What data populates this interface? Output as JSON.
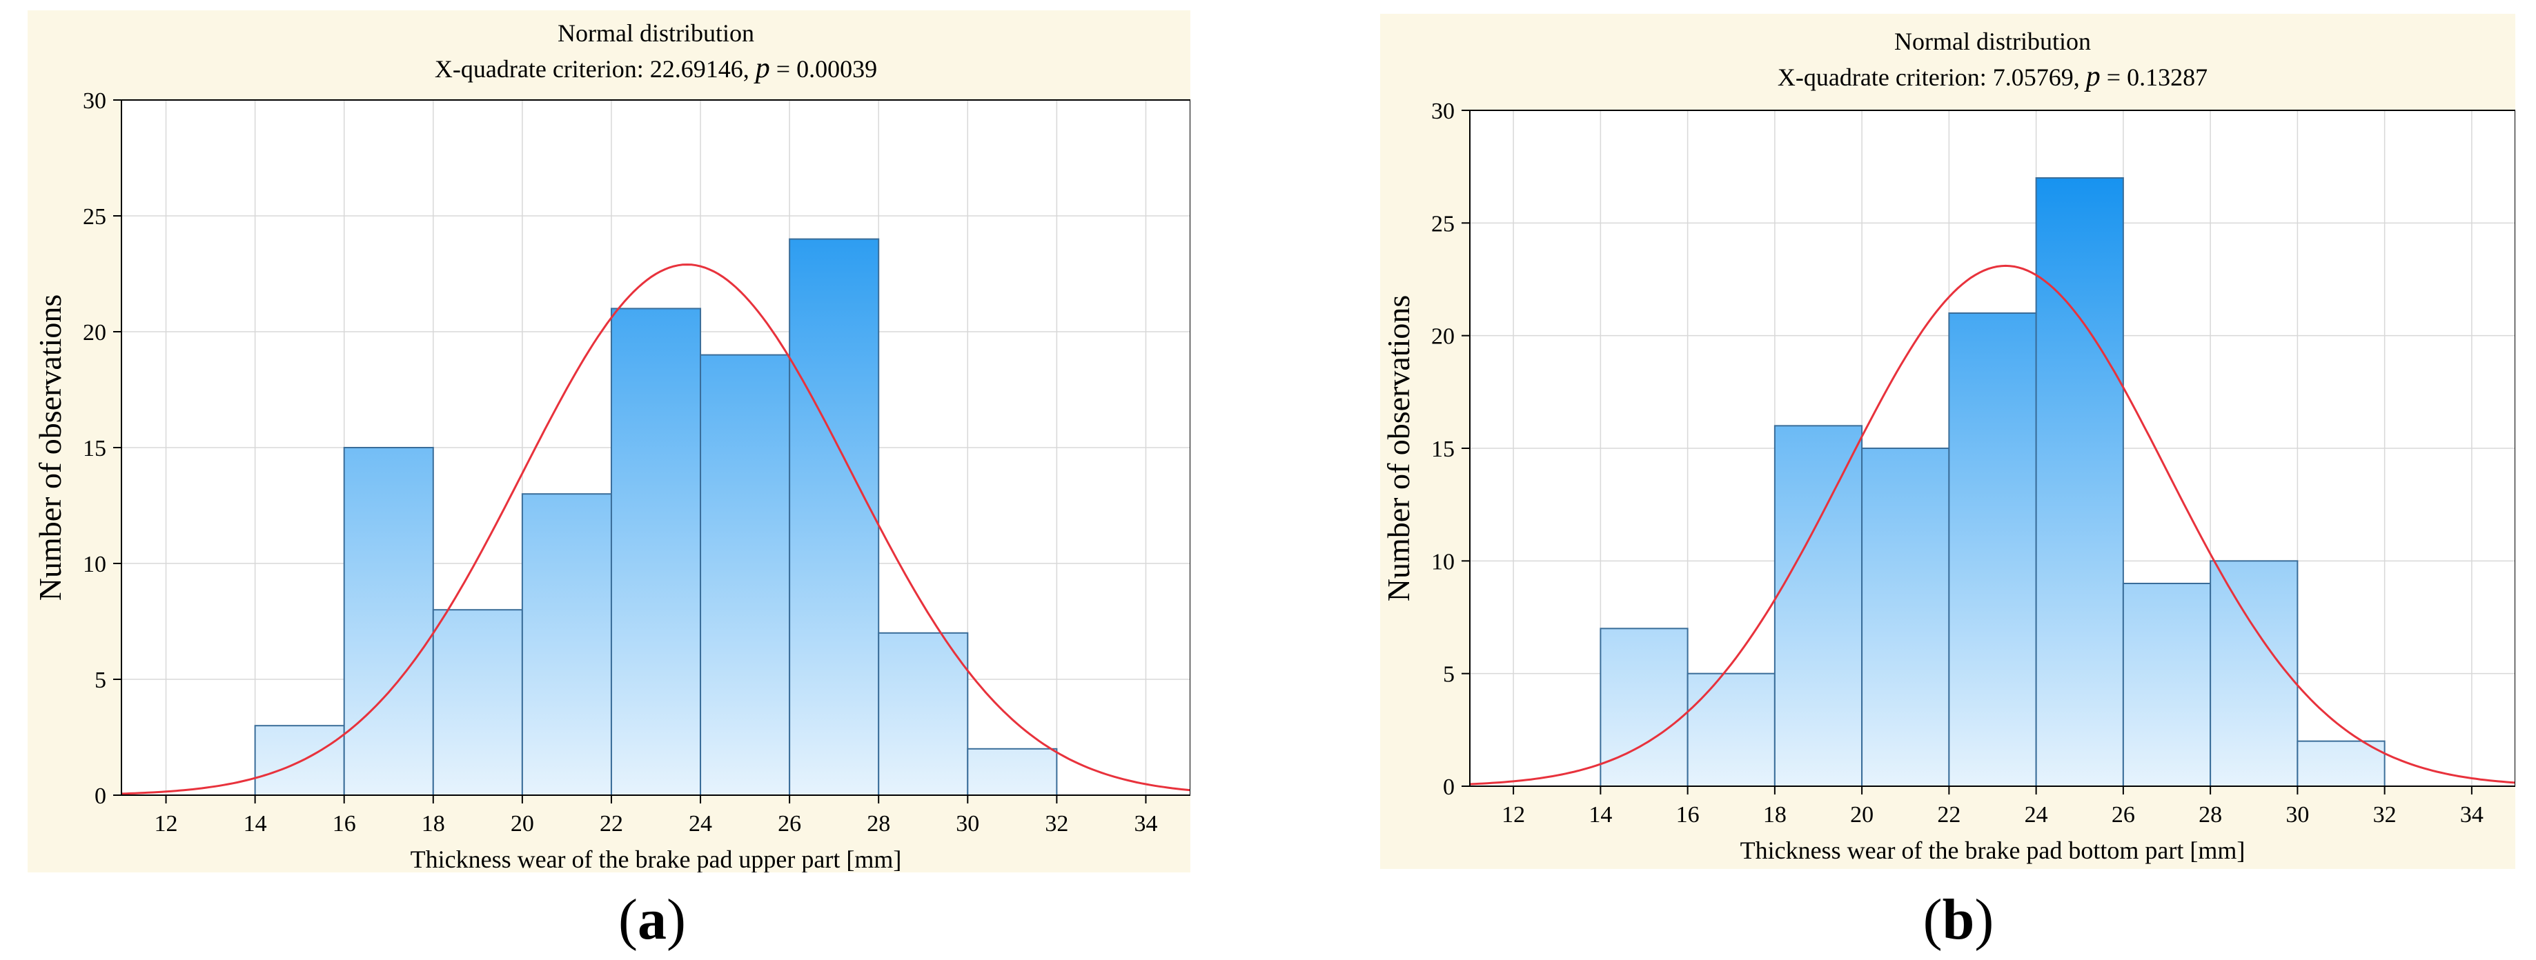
{
  "chart_data": [
    {
      "type": "bar",
      "panel": "a",
      "title": "Normal distribution",
      "subtitle_prefix": "X-quadrate criterion: 22.69146,",
      "p_symbol": "p",
      "p_value": "= 0.00039",
      "xlabel": "Thickness wear of the brake pad upper part [mm]",
      "ylabel": "Number of observations",
      "xlim": [
        11,
        35
      ],
      "ylim": [
        0,
        30
      ],
      "xticks": [
        12,
        14,
        16,
        18,
        20,
        22,
        24,
        26,
        28,
        30,
        32,
        34
      ],
      "yticks": [
        0,
        5,
        10,
        15,
        20,
        25,
        30
      ],
      "bins": [
        [
          14,
          16
        ],
        [
          16,
          18
        ],
        [
          18,
          20
        ],
        [
          20,
          22
        ],
        [
          22,
          24
        ],
        [
          24,
          26
        ],
        [
          26,
          28
        ],
        [
          28,
          30
        ],
        [
          30,
          32
        ]
      ],
      "values": [
        3,
        15,
        8,
        13,
        21,
        19,
        24,
        7,
        2
      ],
      "curve": {
        "type": "normal",
        "mean": 23.7,
        "sd": 3.7,
        "peak": 22.9,
        "color": "#e8323c"
      },
      "grid": true,
      "caption": "a"
    },
    {
      "type": "bar",
      "panel": "b",
      "title": "Normal distribution",
      "subtitle_prefix": "X-quadrate criterion: 7.05769,",
      "p_symbol": "p",
      "p_value": "= 0.13287",
      "xlabel": "Thickness wear of the brake pad bottom part [mm]",
      "ylabel": "Number of observations",
      "xlim": [
        11,
        35
      ],
      "ylim": [
        0,
        30
      ],
      "xticks": [
        12,
        14,
        16,
        18,
        20,
        22,
        24,
        26,
        28,
        30,
        32,
        34
      ],
      "yticks": [
        0,
        5,
        10,
        15,
        20,
        25,
        30
      ],
      "bins": [
        [
          14,
          16
        ],
        [
          16,
          18
        ],
        [
          18,
          20
        ],
        [
          20,
          22
        ],
        [
          22,
          24
        ],
        [
          24,
          26
        ],
        [
          26,
          28
        ],
        [
          28,
          30
        ],
        [
          30,
          32
        ]
      ],
      "values": [
        7,
        5,
        16,
        15,
        21,
        27,
        9,
        10,
        2
      ],
      "curve": {
        "type": "normal",
        "mean": 23.3,
        "sd": 3.7,
        "peak": 23.1,
        "color": "#e8323c"
      },
      "grid": true,
      "caption": "b"
    }
  ],
  "colors": {
    "bar_top": "#0088ee",
    "bar_bottom": "#e6f3fd",
    "bar_stroke": "#3a6d99",
    "panel_bg": "#fcf7e5",
    "grid": "#d8d8d8"
  }
}
